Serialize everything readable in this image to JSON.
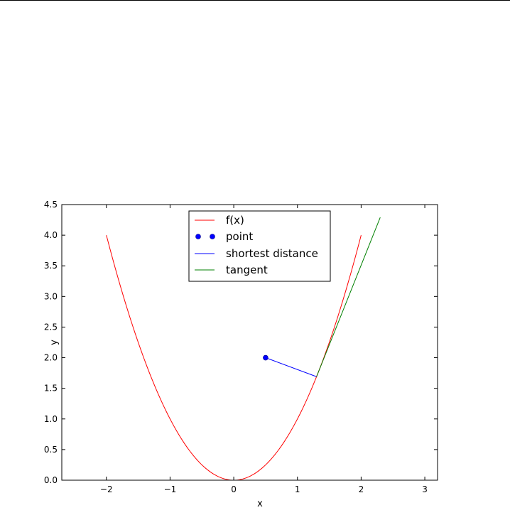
{
  "chart_data": {
    "type": "line",
    "xlabel": "x",
    "ylabel": "y",
    "xlim": [
      -2.7,
      3.2
    ],
    "ylim": [
      0.0,
      4.5
    ],
    "xticks": [
      -2,
      -1,
      0,
      1,
      2,
      3
    ],
    "xtick_labels": [
      "−2",
      "−1",
      "0",
      "1",
      "2",
      "3"
    ],
    "yticks": [
      0.0,
      0.5,
      1.0,
      1.5,
      2.0,
      2.5,
      3.0,
      3.5,
      4.0,
      4.5
    ],
    "ytick_labels": [
      "0.0",
      "0.5",
      "1.0",
      "1.5",
      "2.0",
      "2.5",
      "3.0",
      "3.5",
      "4.0",
      "4.5"
    ],
    "grid": false,
    "legend_position": "top-center",
    "series": [
      {
        "name": "f(x)",
        "kind": "curve",
        "function": "x^2",
        "domain": [
          -2,
          2
        ],
        "color": "#ff0000"
      },
      {
        "name": "point",
        "kind": "marker",
        "x": [
          0.5
        ],
        "y": [
          2.0
        ],
        "color": "#0000ff"
      },
      {
        "name": "shortest distance",
        "kind": "segment",
        "x": [
          0.5,
          1.3
        ],
        "y": [
          2.0,
          1.69
        ],
        "color": "#0000ff"
      },
      {
        "name": "tangent",
        "kind": "segment",
        "x": [
          1.3,
          2.3
        ],
        "y": [
          1.69,
          4.29
        ],
        "color": "#008000"
      }
    ]
  }
}
